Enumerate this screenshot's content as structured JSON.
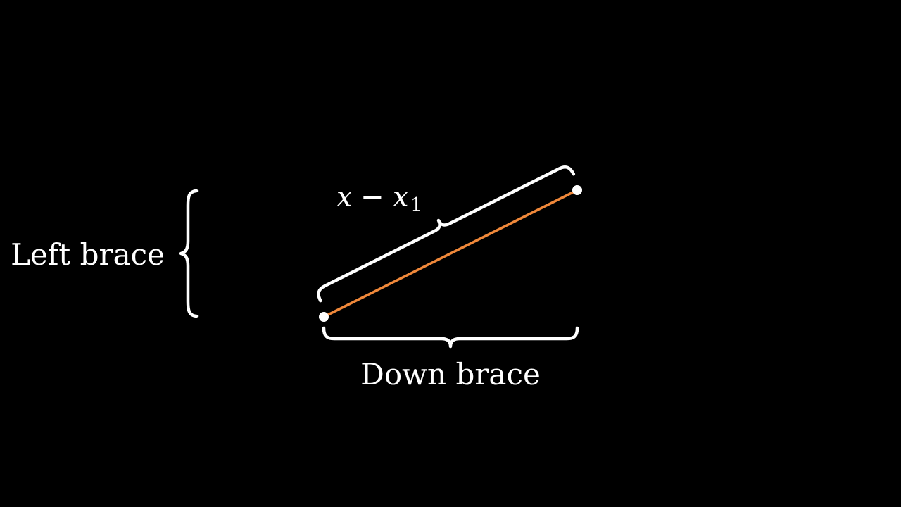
{
  "labels": {
    "left_brace": "Left brace",
    "down_brace": "Down brace",
    "segment_label": {
      "variable": "x",
      "operator": "−",
      "subscripted_variable": "x",
      "subscript": "1"
    }
  },
  "colors": {
    "background": "#000000",
    "segment": "#f0883a",
    "brace": "#ffffff",
    "point": "#ffffff",
    "text": "#ffffff"
  }
}
